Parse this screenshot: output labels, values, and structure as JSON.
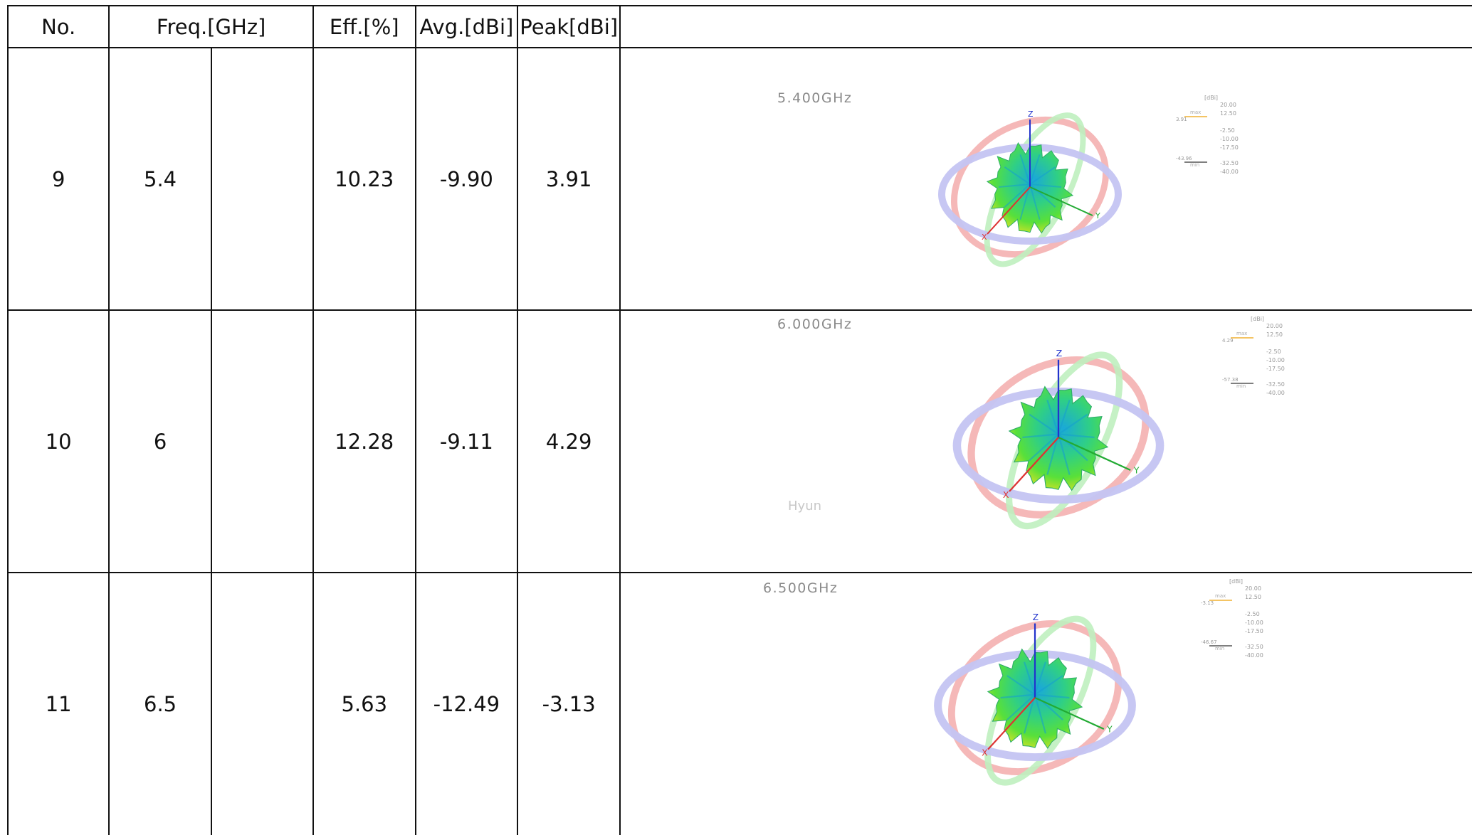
{
  "header": {
    "no": "No.",
    "freq": "Freq.[GHz]",
    "eff": "Eff.[%]",
    "avg": "Avg.[dBi]",
    "peak": "Peak[dBi]"
  },
  "rows": [
    {
      "no": "9",
      "freq": "5.4",
      "eff": "10.23",
      "avg": "-9.90",
      "peak": "3.91",
      "plot": {
        "title": "5.400GHz",
        "unit": "[dBi]",
        "max_label": "max",
        "min_label": "min",
        "max_value": "3.91",
        "min_value": "-43.96",
        "scale": [
          "20.00",
          "12.50",
          "-2.50",
          "-10.00",
          "-17.50",
          "-32.50",
          "-40.00"
        ],
        "axes": [
          "Z",
          "Y",
          "X"
        ],
        "watermark": ""
      }
    },
    {
      "no": "10",
      "freq": "6",
      "eff": "12.28",
      "avg": "-9.11",
      "peak": "4.29",
      "plot": {
        "title": "6.000GHz",
        "unit": "[dBi]",
        "max_label": "max",
        "min_label": "min",
        "max_value": "4.29",
        "min_value": "-57.38",
        "scale": [
          "20.00",
          "12.50",
          "-2.50",
          "-10.00",
          "-17.50",
          "-32.50",
          "-40.00"
        ],
        "axes": [
          "Z",
          "Y",
          "X"
        ],
        "watermark": "Hyun"
      }
    },
    {
      "no": "11",
      "freq": "6.5",
      "eff": "5.63",
      "avg": "-12.49",
      "peak": "-3.13",
      "plot": {
        "title": "6.500GHz",
        "unit": "[dBi]",
        "max_label": "max",
        "min_label": "min",
        "max_value": "-3.13",
        "min_value": "-46.67",
        "scale": [
          "20.00",
          "12.50",
          "-2.50",
          "-10.00",
          "-17.50",
          "-32.50",
          "-40.00"
        ],
        "axes": [
          "Z",
          "Y",
          "X"
        ],
        "watermark": ""
      }
    }
  ]
}
